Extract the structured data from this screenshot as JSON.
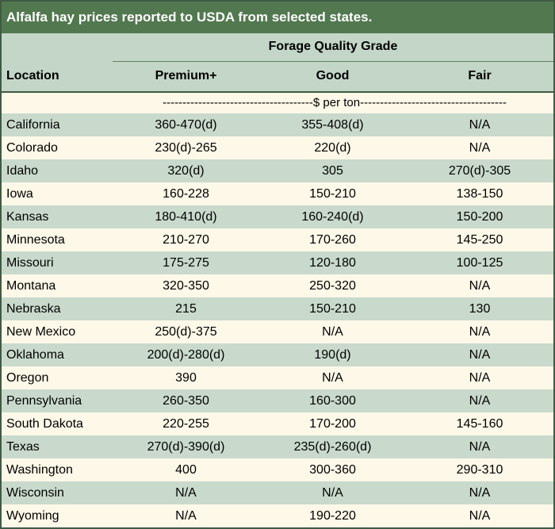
{
  "title": "Alfalfa hay prices reported to USDA from selected states.",
  "header": {
    "grade_title": "Forage Quality Grade",
    "location": "Location",
    "columns": [
      "Premium+",
      "Good",
      "Fair"
    ],
    "units": "--------------------------------------$ per ton-------------------------------------"
  },
  "rows": [
    {
      "location": "California",
      "premium": "360-470(d)",
      "good": "355-408(d)",
      "fair": "N/A"
    },
    {
      "location": "Colorado",
      "premium": "230(d)-265",
      "good": "220(d)",
      "fair": "N/A"
    },
    {
      "location": "Idaho",
      "premium": "320(d)",
      "good": "305",
      "fair": "270(d)-305"
    },
    {
      "location": "Iowa",
      "premium": "160-228",
      "good": "150-210",
      "fair": "138-150"
    },
    {
      "location": "Kansas",
      "premium": "180-410(d)",
      "good": "160-240(d)",
      "fair": "150-200"
    },
    {
      "location": "Minnesota",
      "premium": "210-270",
      "good": "170-260",
      "fair": "145-250"
    },
    {
      "location": "Missouri",
      "premium": "175-275",
      "good": "120-180",
      "fair": "100-125"
    },
    {
      "location": "Montana",
      "premium": "320-350",
      "good": "250-320",
      "fair": "N/A"
    },
    {
      "location": "Nebraska",
      "premium": "215",
      "good": "150-210",
      "fair": "130"
    },
    {
      "location": "New Mexico",
      "premium": "250(d)-375",
      "good": "N/A",
      "fair": "N/A"
    },
    {
      "location": "Oklahoma",
      "premium": "200(d)-280(d)",
      "good": "190(d)",
      "fair": "N/A"
    },
    {
      "location": "Oregon",
      "premium": "390",
      "good": "N/A",
      "fair": "N/A"
    },
    {
      "location": "Pennsylvania",
      "premium": "260-350",
      "good": "160-300",
      "fair": "N/A"
    },
    {
      "location": "South Dakota",
      "premium": "220-255",
      "good": "170-200",
      "fair": "145-160"
    },
    {
      "location": "Texas",
      "premium": "270(d)-390(d)",
      "good": "235(d)-260(d)",
      "fair": "N/A"
    },
    {
      "location": "Washington",
      "premium": "400",
      "good": "300-360",
      "fair": "290-310"
    },
    {
      "location": "Wisconsin",
      "premium": "N/A",
      "good": "N/A",
      "fair": "N/A"
    },
    {
      "location": "Wyoming",
      "premium": "N/A",
      "good": "190-220",
      "fair": "N/A"
    }
  ]
}
